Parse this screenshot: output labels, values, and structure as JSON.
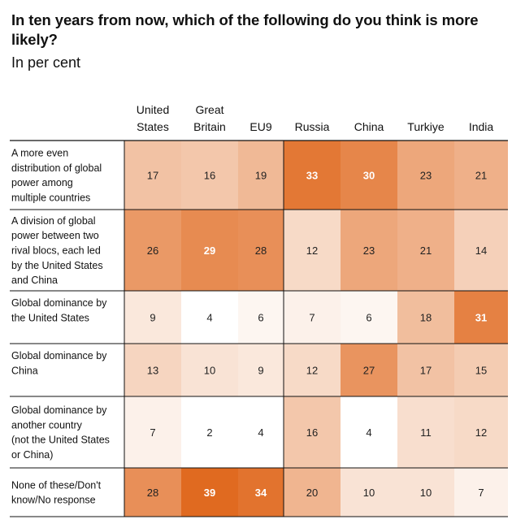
{
  "title": "In ten years from now, which of the following do you think is more likely?",
  "subtitle": "In per cent",
  "chart_data": {
    "type": "heatmap",
    "columns": [
      [
        "United",
        "States"
      ],
      [
        "Great",
        "Britain"
      ],
      [
        "EU9"
      ],
      [
        "Russia"
      ],
      [
        "China"
      ],
      [
        "Turkiye"
      ],
      [
        "India"
      ]
    ],
    "rows": [
      {
        "label": [
          "A more even",
          "distribution of global",
          "power among",
          "multiple countries"
        ],
        "values": [
          17,
          16,
          19,
          33,
          30,
          23,
          21
        ]
      },
      {
        "label": [
          "A division of global",
          "power between two",
          "rival blocs, each led",
          "by the United States",
          "and China"
        ],
        "values": [
          26,
          29,
          28,
          12,
          23,
          21,
          14
        ]
      },
      {
        "label": [
          "Global dominance by",
          "the United States"
        ],
        "values": [
          9,
          4,
          6,
          7,
          6,
          18,
          31
        ]
      },
      {
        "label": [
          "Global dominance by",
          "China"
        ],
        "values": [
          13,
          10,
          9,
          12,
          27,
          17,
          15
        ]
      },
      {
        "label": [
          "Global dominance by",
          "another country",
          "(not the United States",
          "or China)"
        ],
        "values": [
          7,
          2,
          4,
          16,
          4,
          11,
          12
        ]
      },
      {
        "label": [
          "None of these/Don't",
          "know/No response"
        ],
        "values": [
          28,
          39,
          34,
          20,
          10,
          10,
          7
        ]
      }
    ],
    "color_low": "#ffffff",
    "color_high": "#e06a20"
  }
}
